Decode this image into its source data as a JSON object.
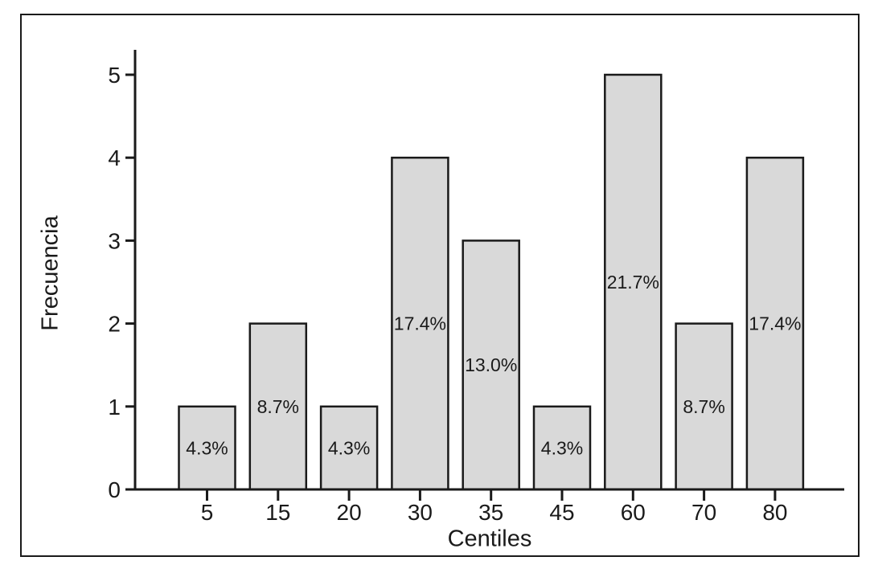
{
  "figure": {
    "background": "#ffffff",
    "border_color": "#1a1a1a"
  },
  "chart_data": {
    "type": "bar",
    "title": "",
    "xlabel": "Centiles",
    "ylabel": "Frecuencia",
    "categories": [
      "5",
      "15",
      "20",
      "30",
      "35",
      "45",
      "60",
      "70",
      "80"
    ],
    "values": [
      1,
      2,
      1,
      4,
      3,
      1,
      5,
      2,
      4
    ],
    "bar_labels": [
      "4.3%",
      "8.7%",
      "4.3%",
      "17.4%",
      "13.0%",
      "4.3%",
      "21.7%",
      "8.7%",
      "17.4%"
    ],
    "yticks": [
      0,
      1,
      2,
      3,
      4,
      5
    ],
    "ylim": [
      0,
      5.3
    ],
    "grid": false,
    "legend": null,
    "bar_fill": "#d9d9d9",
    "bar_stroke": "#1a1a1a",
    "axis_color": "#1a1a1a",
    "text_color": "#1a1a1a"
  }
}
